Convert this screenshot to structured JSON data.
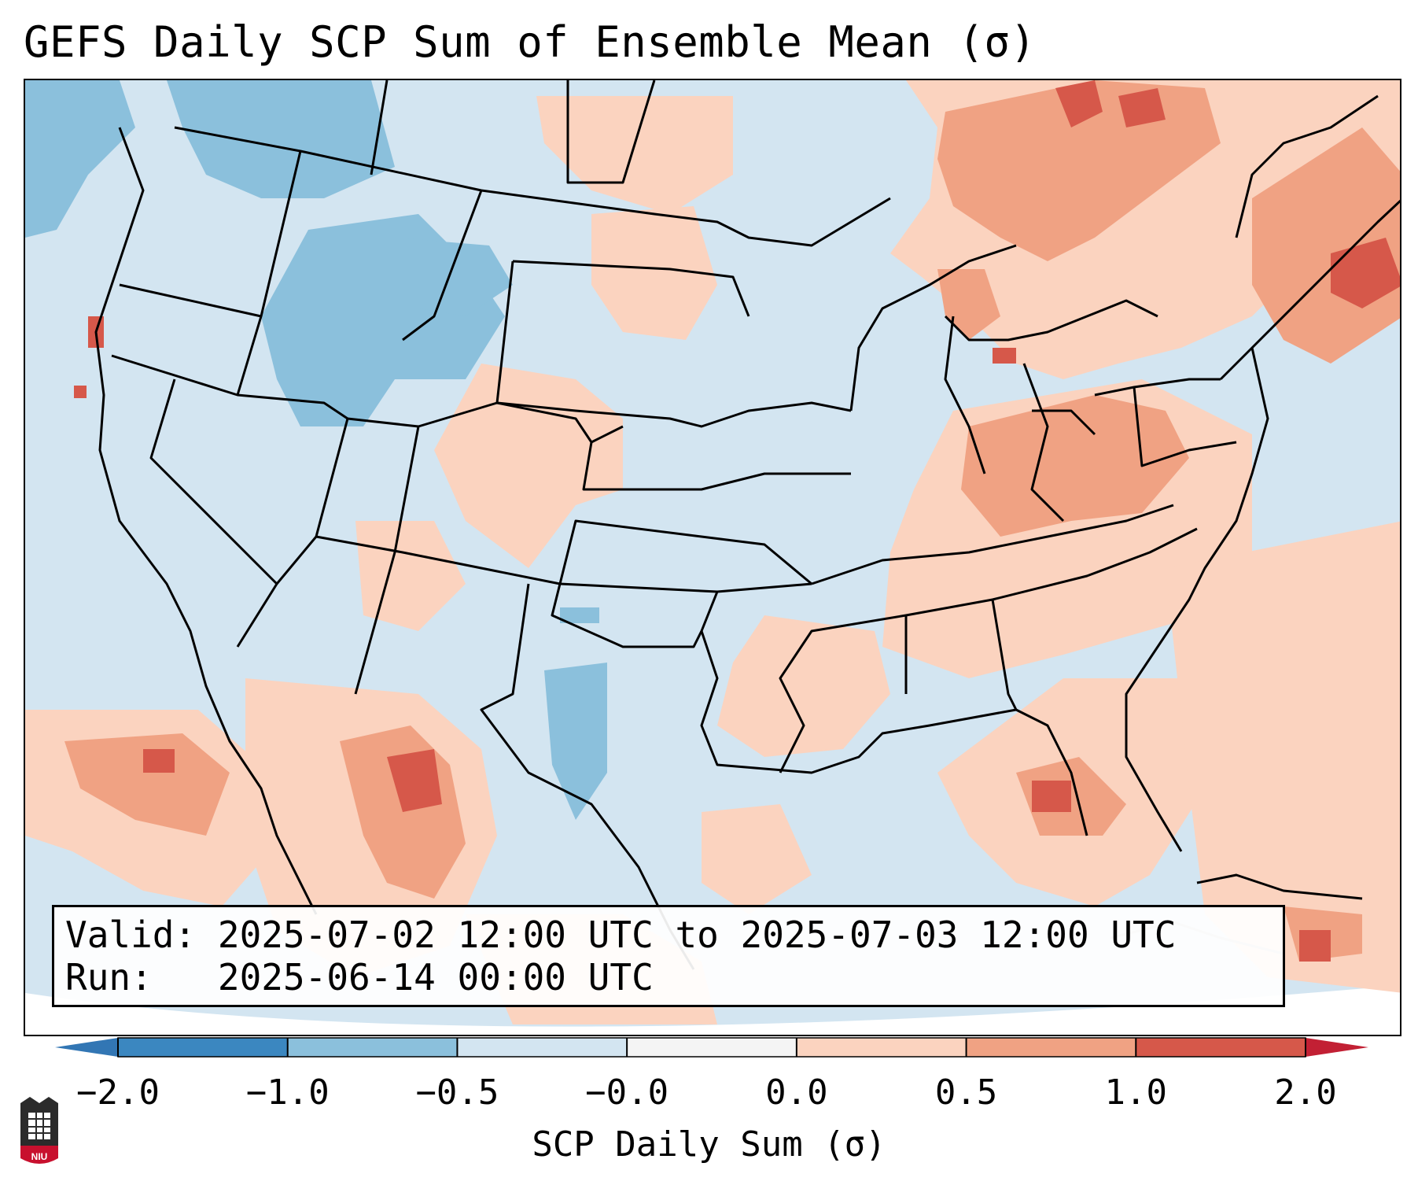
{
  "title": "GEFS Daily SCP Sum of Ensemble Mean (σ)",
  "info": {
    "valid_label": "Valid:",
    "valid_value": "2025-07-02 12:00 UTC to 2025-07-03 12:00 UTC",
    "run_label": "Run:",
    "run_value": "2025-06-14 00:00 UTC"
  },
  "colorbar": {
    "label": "SCP Daily Sum (σ)",
    "ticks": [
      "−2.0",
      "−1.0",
      "−0.5",
      "−0.0",
      "0.0",
      "0.5",
      "1.0",
      "2.0"
    ],
    "colors": [
      "#3b87c0",
      "#8bc0dc",
      "#d3e5f1",
      "#f4f4f4",
      "#fbd3bf",
      "#f0a283",
      "#d6584a"
    ],
    "under_color": "#3276b4",
    "over_color": "#c22034"
  },
  "logo": {
    "text": "NIU",
    "color": "#c8102e"
  },
  "map": {
    "background": "#d3e5f1",
    "positive_color": "#fbd3bf",
    "moderate_color": "#f0a283",
    "high_color": "#d6584a",
    "negative_color": "#8bc0dc"
  }
}
